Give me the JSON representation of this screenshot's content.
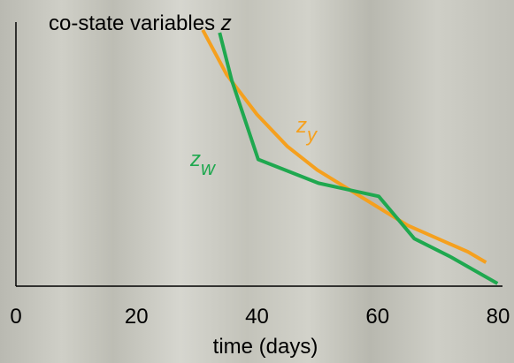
{
  "chart_data": {
    "type": "line",
    "title": "co-state variables ",
    "title_symbol": "z",
    "x_label": "time (days)",
    "xlim": [
      0,
      80
    ],
    "xticks": [
      0,
      20,
      40,
      60,
      80
    ],
    "ylim": [
      0,
      1
    ],
    "series": [
      {
        "name": "z",
        "subscript": "y",
        "color": "#f5a01e",
        "x": [
          31,
          35,
          40,
          45,
          50,
          55,
          60,
          65,
          70,
          75,
          78
        ],
        "values": [
          0.97,
          0.8,
          0.65,
          0.53,
          0.44,
          0.37,
          0.3,
          0.23,
          0.18,
          0.13,
          0.09
        ]
      },
      {
        "name": "z",
        "subscript": "w",
        "color": "#1fa84f",
        "x": [
          33.8,
          35.8,
          40.2,
          50.2,
          60.2,
          66.1,
          72.2,
          79.9
        ],
        "values": [
          0.96,
          0.78,
          0.48,
          0.39,
          0.34,
          0.18,
          0.11,
          0.01
        ]
      }
    ]
  }
}
